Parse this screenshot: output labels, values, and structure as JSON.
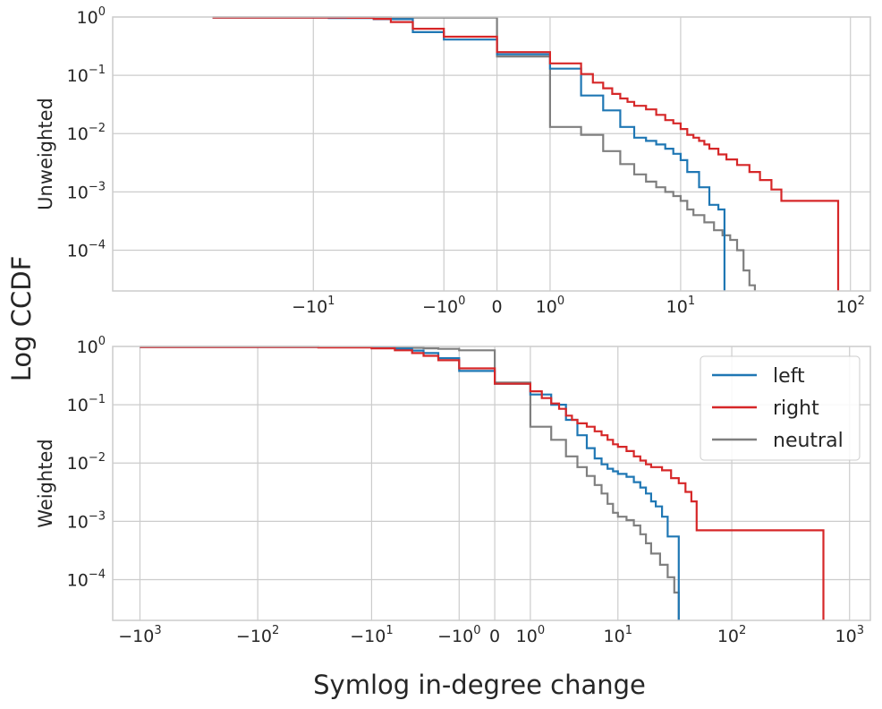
{
  "chart_data": {
    "type": "line",
    "step": true,
    "shared_xlabel": "Symlog in-degree change",
    "shared_ylabel": "Log CCDF",
    "colors": {
      "left": "#1f77b4",
      "right": "#d62728",
      "neutral": "#7f7f7f"
    },
    "legend": {
      "location": "top-right of lower panel",
      "entries": [
        "left",
        "right",
        "neutral"
      ]
    },
    "panels": [
      {
        "name": "Unweighted",
        "ylabel": "Unweighted",
        "xscale": "symlog",
        "yscale": "log",
        "xlim": [
          -150,
          130
        ],
        "ylim": [
          2e-05,
          1
        ],
        "grid": true,
        "xticks": [
          {
            "value": -10,
            "base": "−10",
            "exp": "1"
          },
          {
            "value": -1,
            "base": "−10",
            "exp": "0"
          },
          {
            "value": 0,
            "base": "0",
            "exp": ""
          },
          {
            "value": 1,
            "base": "10",
            "exp": "0"
          },
          {
            "value": 10,
            "base": "10",
            "exp": "1"
          },
          {
            "value": 100,
            "base": "10",
            "exp": "2"
          }
        ],
        "yticks": [
          {
            "value": 1,
            "base": "10",
            "exp": "0"
          },
          {
            "value": 0.1,
            "base": "10",
            "exp": "−1"
          },
          {
            "value": 0.01,
            "base": "10",
            "exp": "−2"
          },
          {
            "value": 0.001,
            "base": "10",
            "exp": "−3"
          },
          {
            "value": 0.0001,
            "base": "10",
            "exp": "−4"
          }
        ],
        "series": [
          {
            "name": "left",
            "points": [
              [
                -40,
                0.98
              ],
              [
                -8,
                0.96
              ],
              [
                -4,
                0.92
              ],
              [
                -2,
                0.55
              ],
              [
                -1,
                0.41
              ],
              [
                0,
                0.23
              ],
              [
                1,
                0.13
              ],
              [
                2,
                0.045
              ],
              [
                3,
                0.025
              ],
              [
                4,
                0.013
              ],
              [
                5,
                0.0085
              ],
              [
                6,
                0.0075
              ],
              [
                7,
                0.0065
              ],
              [
                8,
                0.0055
              ],
              [
                9,
                0.0045
              ],
              [
                10,
                0.0035
              ],
              [
                11,
                0.0022
              ],
              [
                13,
                0.0012
              ],
              [
                15,
                0.0006
              ],
              [
                17,
                0.0005
              ],
              [
                18.5,
                1e-05
              ]
            ]
          },
          {
            "name": "right",
            "points": [
              [
                -40,
                0.98
              ],
              [
                -6,
                0.97
              ],
              [
                -4,
                0.93
              ],
              [
                -3,
                0.82
              ],
              [
                -2,
                0.63
              ],
              [
                -1,
                0.46
              ],
              [
                0,
                0.25
              ],
              [
                1,
                0.16
              ],
              [
                2,
                0.105
              ],
              [
                2.5,
                0.075
              ],
              [
                3,
                0.06
              ],
              [
                3.5,
                0.048
              ],
              [
                4,
                0.04
              ],
              [
                4.5,
                0.035
              ],
              [
                5,
                0.03
              ],
              [
                6,
                0.026
              ],
              [
                7,
                0.021
              ],
              [
                8,
                0.017
              ],
              [
                9,
                0.015
              ],
              [
                10,
                0.012
              ],
              [
                11,
                0.0095
              ],
              [
                12,
                0.0085
              ],
              [
                13,
                0.0075
              ],
              [
                14,
                0.0065
              ],
              [
                15,
                0.0055
              ],
              [
                17,
                0.0044
              ],
              [
                19,
                0.0036
              ],
              [
                22,
                0.0029
              ],
              [
                26,
                0.0022
              ],
              [
                30,
                0.0016
              ],
              [
                35,
                0.0011
              ],
              [
                40,
                0.0007
              ],
              [
                85,
                1e-05
              ]
            ]
          },
          {
            "name": "neutral",
            "points": [
              [
                -40,
                0.99
              ],
              [
                -3,
                0.98
              ],
              [
                -1,
                0.98
              ],
              [
                0,
                0.21
              ],
              [
                1,
                0.013
              ],
              [
                2,
                0.0095
              ],
              [
                3,
                0.005
              ],
              [
                4,
                0.003
              ],
              [
                5,
                0.002
              ],
              [
                6,
                0.0015
              ],
              [
                7,
                0.0012
              ],
              [
                8,
                0.001
              ],
              [
                9,
                0.00085
              ],
              [
                10,
                0.0007
              ],
              [
                11,
                0.0005
              ],
              [
                12,
                0.0004
              ],
              [
                14,
                0.0003
              ],
              [
                16,
                0.00022
              ],
              [
                18,
                0.00018
              ],
              [
                20,
                0.00015
              ],
              [
                22,
                0.0001
              ],
              [
                24,
                4.5e-05
              ],
              [
                26,
                2.5e-05
              ],
              [
                28,
                1e-05
              ]
            ]
          }
        ]
      },
      {
        "name": "Weighted",
        "ylabel": "Weighted",
        "xscale": "symlog",
        "yscale": "log",
        "xlim": [
          -1700,
          1500
        ],
        "ylim": [
          2e-05,
          1
        ],
        "grid": true,
        "xticks": [
          {
            "value": -1000,
            "base": "−10",
            "exp": "3"
          },
          {
            "value": -100,
            "base": "−10",
            "exp": "2"
          },
          {
            "value": -10,
            "base": "−10",
            "exp": "1"
          },
          {
            "value": -1,
            "base": "−10",
            "exp": "0"
          },
          {
            "value": 0,
            "base": "0",
            "exp": ""
          },
          {
            "value": 1,
            "base": "10",
            "exp": "0"
          },
          {
            "value": 10,
            "base": "10",
            "exp": "1"
          },
          {
            "value": 100,
            "base": "10",
            "exp": "2"
          },
          {
            "value": 1000,
            "base": "10",
            "exp": "3"
          }
        ],
        "yticks": [
          {
            "value": 1,
            "base": "10",
            "exp": "0"
          },
          {
            "value": 0.1,
            "base": "10",
            "exp": "−1"
          },
          {
            "value": 0.01,
            "base": "10",
            "exp": "−2"
          },
          {
            "value": 0.001,
            "base": "10",
            "exp": "−3"
          },
          {
            "value": 0.0001,
            "base": "10",
            "exp": "−4"
          }
        ],
        "series": [
          {
            "name": "left",
            "points": [
              [
                -1000,
                0.98
              ],
              [
                -30,
                0.97
              ],
              [
                -10,
                0.95
              ],
              [
                -6,
                0.92
              ],
              [
                -4,
                0.85
              ],
              [
                -3,
                0.77
              ],
              [
                -2,
                0.63
              ],
              [
                -1,
                0.38
              ],
              [
                0,
                0.23
              ],
              [
                1,
                0.15
              ],
              [
                2,
                0.1
              ],
              [
                3,
                0.055
              ],
              [
                4,
                0.03
              ],
              [
                5,
                0.018
              ],
              [
                6,
                0.012
              ],
              [
                7,
                0.0095
              ],
              [
                8,
                0.008
              ],
              [
                9,
                0.0072
              ],
              [
                10,
                0.0065
              ],
              [
                12,
                0.0058
              ],
              [
                14,
                0.0047
              ],
              [
                16,
                0.0038
              ],
              [
                18,
                0.003
              ],
              [
                20,
                0.0022
              ],
              [
                22,
                0.0018
              ],
              [
                25,
                0.0012
              ],
              [
                28,
                0.00055
              ],
              [
                35,
                1e-05
              ]
            ]
          },
          {
            "name": "right",
            "points": [
              [
                -1000,
                0.98
              ],
              [
                -30,
                0.96
              ],
              [
                -10,
                0.93
              ],
              [
                -6,
                0.86
              ],
              [
                -4,
                0.77
              ],
              [
                -3,
                0.69
              ],
              [
                -2,
                0.58
              ],
              [
                -1,
                0.42
              ],
              [
                0,
                0.23
              ],
              [
                1,
                0.17
              ],
              [
                1.5,
                0.13
              ],
              [
                2,
                0.105
              ],
              [
                2.5,
                0.085
              ],
              [
                3,
                0.065
              ],
              [
                3.5,
                0.055
              ],
              [
                4,
                0.048
              ],
              [
                5,
                0.042
              ],
              [
                6,
                0.035
              ],
              [
                7,
                0.03
              ],
              [
                8,
                0.025
              ],
              [
                9,
                0.021
              ],
              [
                10,
                0.019
              ],
              [
                12,
                0.016
              ],
              [
                14,
                0.013
              ],
              [
                16,
                0.011
              ],
              [
                18,
                0.0095
              ],
              [
                20,
                0.0085
              ],
              [
                25,
                0.0075
              ],
              [
                30,
                0.0055
              ],
              [
                35,
                0.0045
              ],
              [
                40,
                0.0032
              ],
              [
                45,
                0.0022
              ],
              [
                50,
                0.0007
              ],
              [
                600,
                1e-05
              ]
            ]
          },
          {
            "name": "neutral",
            "points": [
              [
                -1000,
                0.99
              ],
              [
                -30,
                0.98
              ],
              [
                -10,
                0.97
              ],
              [
                -5,
                0.95
              ],
              [
                -3,
                0.93
              ],
              [
                -2,
                0.91
              ],
              [
                -1,
                0.86
              ],
              [
                0,
                0.24
              ],
              [
                1,
                0.042
              ],
              [
                2,
                0.025
              ],
              [
                3,
                0.013
              ],
              [
                4,
                0.0085
              ],
              [
                5,
                0.006
              ],
              [
                6,
                0.0042
              ],
              [
                7,
                0.003
              ],
              [
                8,
                0.002
              ],
              [
                9,
                0.0014
              ],
              [
                10,
                0.0012
              ],
              [
                12,
                0.00105
              ],
              [
                14,
                0.00085
              ],
              [
                16,
                0.0006
              ],
              [
                18,
                0.00042
              ],
              [
                20,
                0.00028
              ],
              [
                24,
                0.00018
              ],
              [
                28,
                0.00011
              ],
              [
                32,
                6e-05
              ],
              [
                35,
                1e-05
              ]
            ]
          }
        ]
      }
    ]
  }
}
